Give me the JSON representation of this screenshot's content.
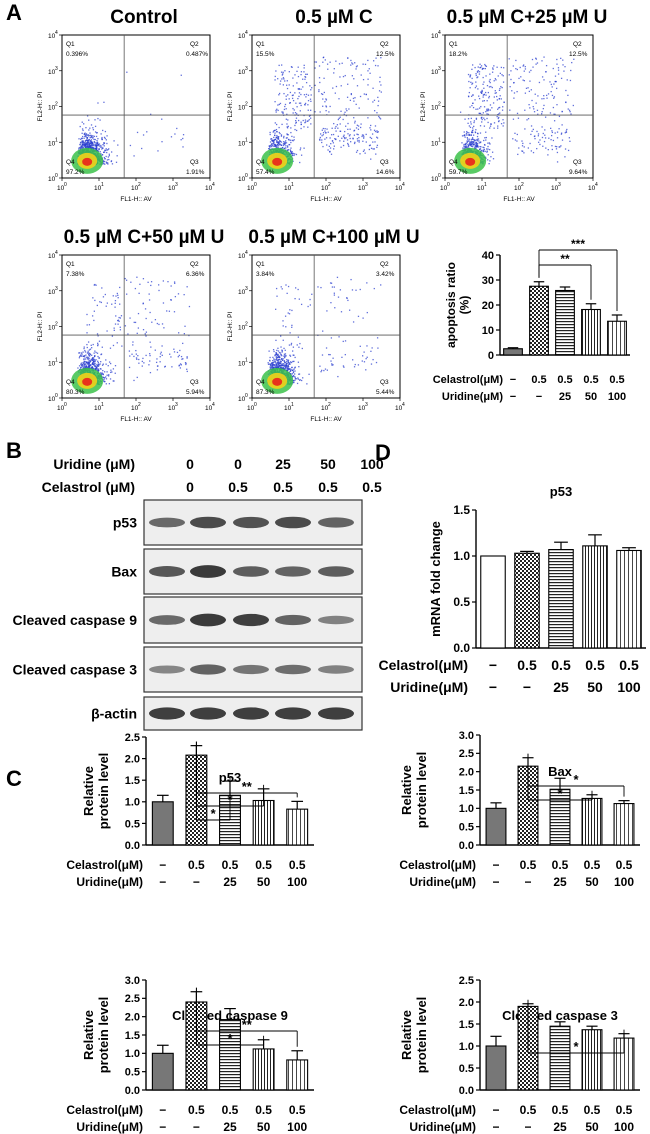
{
  "panel_labels": {
    "a": "A",
    "b": "B",
    "c": "C",
    "d": "D"
  },
  "colors": {
    "bar_dark": "#777777",
    "axis": "#000000",
    "flow_blue": "#2b3fcf",
    "flow_hot": "#e8331c",
    "blot_bg": "#eeeeee",
    "band": "#2a2a2a"
  },
  "flow_axes": {
    "xlabel": "FL1-H:: AV",
    "ylabel": "FL2-H:: PI",
    "ticks": [
      {
        "base": "10",
        "exp": "0"
      },
      {
        "base": "10",
        "exp": "1"
      },
      {
        "base": "10",
        "exp": "2"
      },
      {
        "base": "10",
        "exp": "3"
      },
      {
        "base": "10",
        "exp": "4"
      }
    ]
  },
  "flow_plots": [
    {
      "title": "Control",
      "q1_label": "Q1",
      "q1": "0.396%",
      "q2_label": "Q2",
      "q2": "0.487%",
      "q3_label": "Q3",
      "q3": "1.91%",
      "q4_label": "Q4",
      "q4": "97.2%",
      "early": 0.02,
      "late": 0.005,
      "necro": 0.004
    },
    {
      "title": "0.5 µM C",
      "q1_label": "Q1",
      "q1": "15.5%",
      "q2_label": "Q2",
      "q2": "12.5%",
      "q3_label": "Q3",
      "q3": "14.6%",
      "q4_label": "Q4",
      "q4": "57.4%",
      "early": 0.146,
      "late": 0.125,
      "necro": 0.155
    },
    {
      "title": "0.5 µM C+25 µM U",
      "q1_label": "Q1",
      "q1": "18.2%",
      "q2_label": "Q2",
      "q2": "12.5%",
      "q3_label": "Q3",
      "q3": "9.64%",
      "q4_label": "Q4",
      "q4": "59.7%",
      "early": 0.096,
      "late": 0.125,
      "necro": 0.182
    },
    {
      "title": "0.5 µM C+50 µM U",
      "q1_label": "Q1",
      "q1": "7.38%",
      "q2_label": "Q2",
      "q2": "6.36%",
      "q3_label": "Q3",
      "q3": "5.94%",
      "q4_label": "Q4",
      "q4": "80.3%",
      "early": 0.059,
      "late": 0.064,
      "necro": 0.074
    },
    {
      "title": "0.5 µM C+100 µM U",
      "q1_label": "Q1",
      "q1": "3.84%",
      "q2_label": "Q2",
      "q2": "3.42%",
      "q3_label": "Q3",
      "q3": "5.44%",
      "q4_label": "Q4",
      "q4": "87.3%",
      "early": 0.054,
      "late": 0.034,
      "necro": 0.038
    }
  ],
  "chart_data": [
    {
      "id": "apoptosis",
      "type": "bar",
      "title": "",
      "ylabel": "apoptosis ratio (%)",
      "ylabel_line1": "apoptosis ratio",
      "ylabel_line2": "(%)",
      "ylim": [
        0,
        40
      ],
      "yticks": [
        0,
        10,
        20,
        30,
        40
      ],
      "values": [
        2.5,
        27.5,
        25.8,
        18.2,
        13.5
      ],
      "errors": [
        0.4,
        1.8,
        1.4,
        2.3,
        2.5
      ],
      "patterns": [
        "solid",
        "check",
        "hlines",
        "vlines",
        "vlines2"
      ],
      "row1_label": "Celastrol(μM)",
      "row1": [
        "−",
        "0.5",
        "0.5",
        "0.5",
        "0.5"
      ],
      "row2_label": "Uridine(μM)",
      "row2": [
        "−",
        "−",
        "25",
        "50",
        "100"
      ],
      "sig": [
        {
          "from": 1,
          "to": 3,
          "label": "**"
        },
        {
          "from": 1,
          "to": 4,
          "label": "***"
        }
      ]
    },
    {
      "id": "mrna_p53",
      "type": "bar",
      "title": "p53",
      "ylabel": "mRNA fold change",
      "ylabel_line1": "mRNA fold change",
      "ylabel_line2": "",
      "ylim": [
        0,
        1.5
      ],
      "yticks": [
        "0.0",
        "0.5",
        "1.0",
        "1.5"
      ],
      "values": [
        1.0,
        1.03,
        1.07,
        1.11,
        1.06
      ],
      "errors": [
        0.0,
        0.02,
        0.08,
        0.12,
        0.03
      ],
      "patterns": [
        "white",
        "check",
        "hlines",
        "vlines",
        "vlines2"
      ],
      "row1_label": "Celastrol(μM)",
      "row1": [
        "−",
        "0.5",
        "0.5",
        "0.5",
        "0.5"
      ],
      "row2_label": "Uridine(μM)",
      "row2": [
        "−",
        "−",
        "25",
        "50",
        "100"
      ],
      "sig": []
    },
    {
      "id": "p53",
      "type": "bar",
      "title": "p53",
      "ylabel": "Relative protein level",
      "ylabel_line1": "Relative",
      "ylabel_line2": "protein level",
      "ylim": [
        0,
        2.5
      ],
      "yticks": [
        "0.0",
        "0.5",
        "1.0",
        "1.5",
        "2.0",
        "2.5"
      ],
      "values": [
        1.0,
        2.08,
        1.15,
        1.03,
        0.83
      ],
      "errors": [
        0.15,
        0.22,
        0.33,
        0.27,
        0.18
      ],
      "patterns": [
        "solid",
        "check",
        "hlines",
        "vlines",
        "vlines2"
      ],
      "row1_label": "Celastrol(μM)",
      "row1": [
        "−",
        "0.5",
        "0.5",
        "0.5",
        "0.5"
      ],
      "row2_label": "Uridine(μM)",
      "row2": [
        "−",
        "−",
        "25",
        "50",
        "100"
      ],
      "sig": [
        {
          "from": 1,
          "to": 2,
          "label": "*"
        },
        {
          "from": 1,
          "to": 3,
          "label": "*"
        },
        {
          "from": 1,
          "to": 4,
          "label": "**"
        }
      ]
    },
    {
      "id": "bax",
      "type": "bar",
      "title": "Bax",
      "ylabel": "Relative protein level",
      "ylabel_line1": "Relative",
      "ylabel_line2": "protein level",
      "ylim": [
        0,
        3.0
      ],
      "yticks": [
        "0.0",
        "0.5",
        "1.0",
        "1.5",
        "2.0",
        "2.5",
        "3.0"
      ],
      "values": [
        1.0,
        2.15,
        1.52,
        1.27,
        1.13
      ],
      "errors": [
        0.15,
        0.23,
        0.3,
        0.1,
        0.08
      ],
      "patterns": [
        "solid",
        "check",
        "hlines",
        "vlines",
        "vlines2"
      ],
      "row1_label": "Celastrol(μM)",
      "row1": [
        "−",
        "0.5",
        "0.5",
        "0.5",
        "0.5"
      ],
      "row2_label": "Uridine(μM)",
      "row2": [
        "−",
        "−",
        "25",
        "50",
        "100"
      ],
      "sig": [
        {
          "from": 1,
          "to": 3,
          "label": "*"
        },
        {
          "from": 1,
          "to": 4,
          "label": "*"
        }
      ]
    },
    {
      "id": "casp9",
      "type": "bar",
      "title": "Cleaved caspase 9",
      "ylabel": "Relative protein level",
      "ylabel_line1": "Relative",
      "ylabel_line2": "protein level",
      "ylim": [
        0,
        3.0
      ],
      "yticks": [
        "0.0",
        "0.5",
        "1.0",
        "1.5",
        "2.0",
        "2.5",
        "3.0"
      ],
      "values": [
        1.0,
        2.4,
        1.92,
        1.12,
        0.82
      ],
      "errors": [
        0.22,
        0.28,
        0.3,
        0.25,
        0.25
      ],
      "patterns": [
        "solid",
        "check",
        "hlines",
        "vlines",
        "vlines2"
      ],
      "row1_label": "Celastrol(μM)",
      "row1": [
        "−",
        "0.5",
        "0.5",
        "0.5",
        "0.5"
      ],
      "row2_label": "Uridine(μM)",
      "row2": [
        "−",
        "−",
        "25",
        "50",
        "100"
      ],
      "sig": [
        {
          "from": 1,
          "to": 3,
          "label": "*"
        },
        {
          "from": 1,
          "to": 4,
          "label": "**"
        }
      ]
    },
    {
      "id": "casp3",
      "type": "bar",
      "title": "Cleaved caspase 3",
      "ylabel": "Relative protein level",
      "ylabel_line1": "Relative",
      "ylabel_line2": "protein level",
      "ylim": [
        0,
        2.5
      ],
      "yticks": [
        "0.0",
        "0.5",
        "1.0",
        "1.5",
        "2.0",
        "2.5"
      ],
      "values": [
        1.0,
        1.9,
        1.45,
        1.37,
        1.18
      ],
      "errors": [
        0.22,
        0.06,
        0.1,
        0.08,
        0.1
      ],
      "patterns": [
        "solid",
        "check",
        "hlines",
        "vlines",
        "vlines2"
      ],
      "row1_label": "Celastrol(μM)",
      "row1": [
        "−",
        "0.5",
        "0.5",
        "0.5",
        "0.5"
      ],
      "row2_label": "Uridine(μM)",
      "row2": [
        "−",
        "−",
        "25",
        "50",
        "100"
      ],
      "sig": [
        {
          "from": 1,
          "to": 4,
          "label": "*"
        }
      ]
    }
  ],
  "western_blot": {
    "uridine_label": "Uridine (μM)",
    "uridine": [
      "0",
      "0",
      "25",
      "50",
      "100"
    ],
    "celastrol_label": "Celastrol (μM)",
    "celastrol": [
      "0",
      "0.5",
      "0.5",
      "0.5",
      "0.5"
    ],
    "rows": [
      {
        "name": "p53",
        "intensity": [
          0.55,
          0.8,
          0.75,
          0.8,
          0.6
        ]
      },
      {
        "name": "Bax",
        "intensity": [
          0.7,
          0.95,
          0.65,
          0.6,
          0.65
        ]
      },
      {
        "name": "Cleaved caspase 9",
        "intensity": [
          0.55,
          0.95,
          0.9,
          0.6,
          0.35
        ]
      },
      {
        "name": "Cleaved caspase 3",
        "intensity": [
          0.3,
          0.6,
          0.45,
          0.5,
          0.35
        ]
      },
      {
        "name": "β-actin",
        "intensity": [
          0.9,
          0.9,
          0.9,
          0.9,
          0.9
        ]
      }
    ]
  }
}
